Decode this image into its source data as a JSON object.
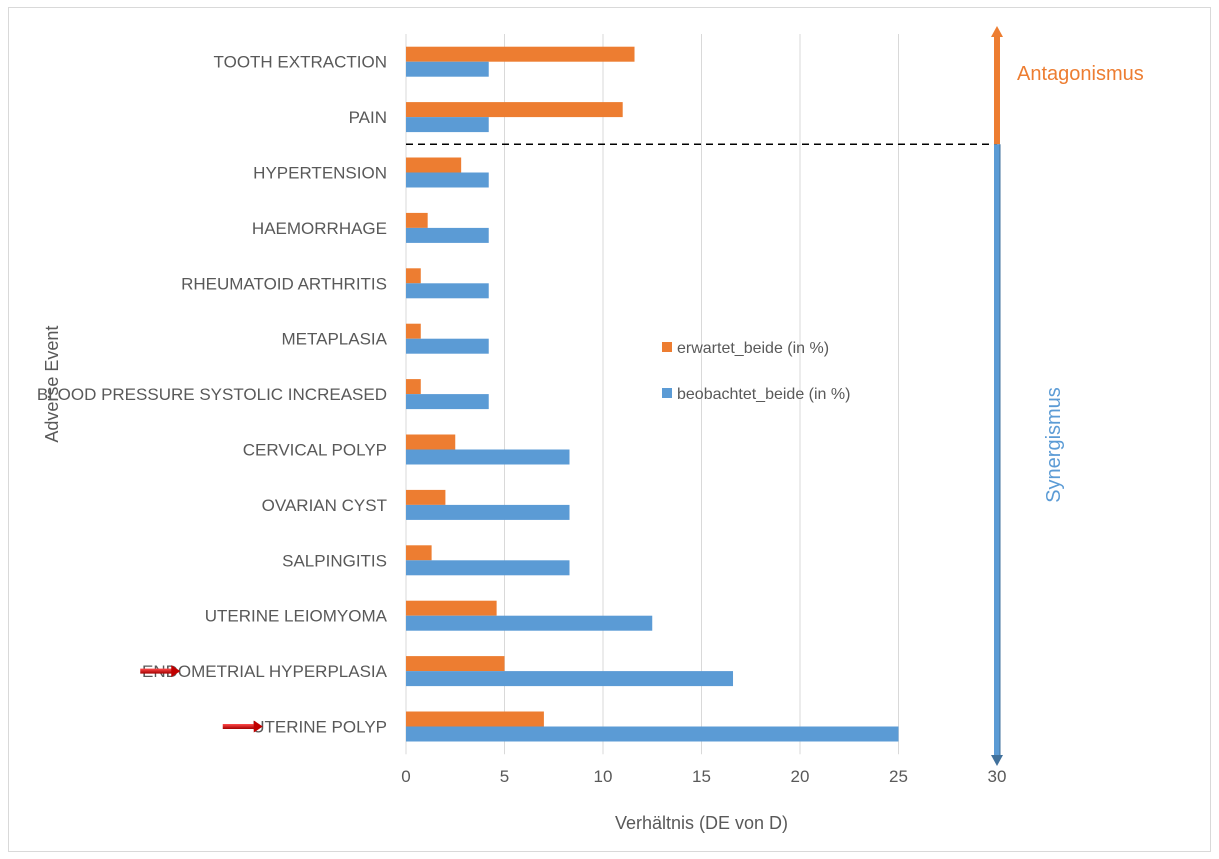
{
  "chart_data": {
    "type": "bar",
    "orientation": "horizontal",
    "title": "",
    "xlabel": "Verhältnis (DE von D)",
    "ylabel": "Adverse Event",
    "xlim": [
      0,
      30
    ],
    "xticks": [
      0,
      5,
      10,
      15,
      20,
      25,
      30
    ],
    "grid": true,
    "legend_position": "center-right",
    "categories": [
      "TOOTH EXTRACTION",
      "PAIN",
      "HYPERTENSION",
      "HAEMORRHAGE",
      "RHEUMATOID ARTHRITIS",
      "METAPLASIA",
      "BLOOD PRESSURE SYSTOLIC INCREASED",
      "CERVICAL POLYP",
      "OVARIAN CYST",
      "SALPINGITIS",
      "UTERINE LEIOMYOMA",
      "ENDOMETRIAL HYPERPLASIA",
      "UTERINE POLYP"
    ],
    "series": [
      {
        "name": "erwartet_beide (in %)",
        "color": "#ed7d31",
        "values": [
          11.6,
          11.0,
          2.8,
          1.1,
          0.75,
          0.75,
          0.75,
          2.5,
          2.0,
          1.3,
          4.6,
          5.0,
          7.0
        ]
      },
      {
        "name": "beobachtet_beide (in %)",
        "color": "#5b9bd5",
        "values": [
          4.2,
          4.2,
          4.2,
          4.2,
          4.2,
          4.2,
          4.2,
          8.3,
          8.3,
          8.3,
          12.5,
          16.6,
          25.0
        ]
      }
    ],
    "divider_after_category": "PAIN",
    "annotations": {
      "antagonism": {
        "text": "Antagonismus",
        "color": "#ed7d31"
      },
      "synergism": {
        "text": "Synergismus",
        "color": "#5b9bd5"
      },
      "highlighted_categories": [
        "ENDOMETRIAL HYPERPLASIA",
        "UTERINE POLYP"
      ],
      "highlight_marker": "red-arrow-icon",
      "highlight_color": "#c00000"
    }
  }
}
